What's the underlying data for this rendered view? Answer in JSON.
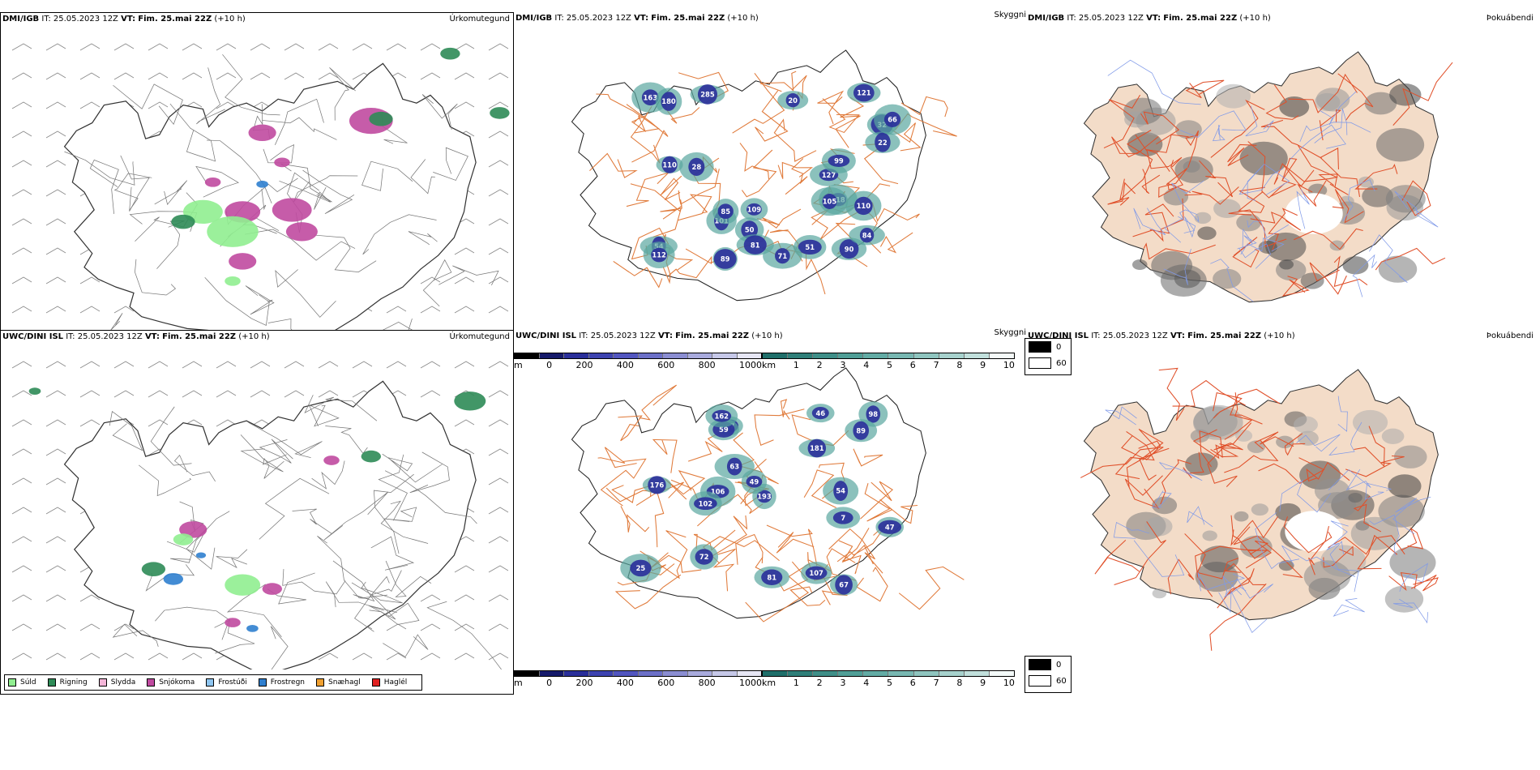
{
  "rows": [
    {
      "model": "DMI/IGB",
      "it_label": "IT:",
      "it_value": "25.05.2023 12Z",
      "vt_label": "VT:",
      "vt_value": "Fim. 25.mai 22Z",
      "lead": "(+10 h)",
      "precip_title": "Úrkomutegund",
      "visibility_title": "Skyggni",
      "cloud_title": "Þokuábendi",
      "vis_labels": [
        "109",
        "118",
        "50",
        "127",
        "163",
        "51",
        "32",
        "28",
        "90",
        "54",
        "101",
        "84",
        "110",
        "89",
        "110",
        "112",
        "285",
        "99",
        "22",
        "180",
        "20",
        "105",
        "121",
        "85",
        "81",
        "71",
        "66"
      ],
      "cloud_legend": [
        "0",
        "60"
      ]
    },
    {
      "model": "UWC/DINI ISL",
      "it_label": "IT:",
      "it_value": "25.05.2023 12Z",
      "vt_label": "VT:",
      "vt_value": "Fim. 25.mai 22Z",
      "lead": "(+10 h)",
      "precip_title": "Úrkomutegund",
      "visibility_title": "Skyggni",
      "cloud_title": "Þokuábendi",
      "vis_labels": [
        "193",
        "106",
        "25",
        "98",
        "63",
        "46",
        "102",
        "67",
        "59",
        "81",
        "72",
        "89",
        "181",
        "176",
        "162",
        "54",
        "67",
        "107",
        "7",
        "49",
        "47"
      ],
      "cloud_legend": [
        "0",
        "60"
      ]
    }
  ],
  "precip_legend": [
    {
      "label": "Súld",
      "color": "#90ee90"
    },
    {
      "label": "Rigning",
      "color": "#2e8b57"
    },
    {
      "label": "Slydda",
      "color": "#f4b6d8"
    },
    {
      "label": "Snjókoma",
      "color": "#c04aa0"
    },
    {
      "label": "Frostúði",
      "color": "#8ec5f0"
    },
    {
      "label": "Frostregn",
      "color": "#2f7fcf"
    },
    {
      "label": "Snæhagl",
      "color": "#f0a030"
    },
    {
      "label": "Haglél",
      "color": "#e02020"
    }
  ],
  "scale_m": {
    "unit": "m",
    "ticks": [
      "0",
      "200",
      "400",
      "600",
      "800",
      "1000"
    ]
  },
  "scale_km": {
    "unit": "km",
    "ticks": [
      "1",
      "2",
      "3",
      "4",
      "5",
      "6",
      "7",
      "8",
      "9",
      "10"
    ]
  },
  "colors": {
    "land_cloud": "#f3dcc8",
    "roads": "#e07a3a",
    "rivers": "#7f99e8",
    "vis_blue": "#2a2f9a",
    "vis_teal": "#5aa7a0",
    "coast": "#444444"
  }
}
